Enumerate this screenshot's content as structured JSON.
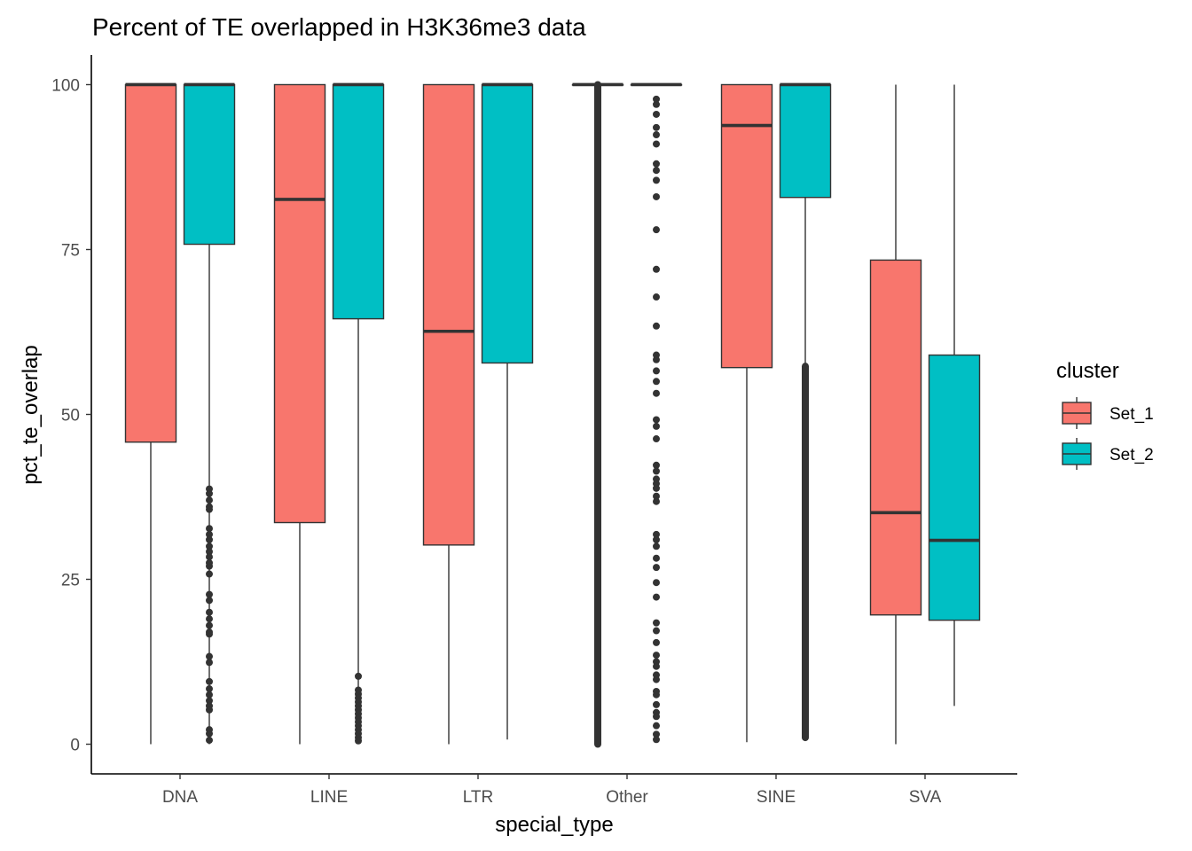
{
  "chart_data": {
    "type": "boxplot",
    "title": "Percent of TE overlapped in H3K36me3 data",
    "xlabel": "special_type",
    "ylabel": "pct_te_overlap",
    "ylim": [
      -4.5,
      104.5
    ],
    "yticks": [
      0,
      25,
      50,
      75,
      100
    ],
    "categories": [
      "DNA",
      "LINE",
      "LTR",
      "Other",
      "SINE",
      "SVA"
    ],
    "legend": {
      "title": "cluster",
      "position": "right",
      "entries": [
        {
          "name": "Set_1",
          "color": "#F8766D"
        },
        {
          "name": "Set_2",
          "color": "#00BFC4"
        }
      ]
    },
    "series": [
      {
        "name": "Set_1",
        "color": "#F8766D",
        "boxes": [
          {
            "category": "DNA",
            "min": 0,
            "q1": 45.8,
            "median": 100,
            "q3": 100,
            "max": 100,
            "outliers": []
          },
          {
            "category": "LINE",
            "min": 0,
            "q1": 33.6,
            "median": 82.6,
            "q3": 100,
            "max": 100,
            "outliers": []
          },
          {
            "category": "LTR",
            "min": 0,
            "q1": 30.2,
            "median": 62.6,
            "q3": 100,
            "max": 100,
            "outliers": []
          },
          {
            "category": "Other",
            "min": 100,
            "q1": 100,
            "median": 100,
            "q3": 100,
            "max": 100,
            "outliers_dense_range": [
              0,
              100
            ]
          },
          {
            "category": "SINE",
            "min": 0.3,
            "q1": 57.1,
            "median": 93.8,
            "q3": 100,
            "max": 100,
            "outliers": []
          },
          {
            "category": "SVA",
            "min": 0,
            "q1": 19.6,
            "median": 35.1,
            "q3": 73.4,
            "max": 100,
            "outliers": []
          }
        ]
      },
      {
        "name": "Set_2",
        "color": "#00BFC4",
        "boxes": [
          {
            "category": "DNA",
            "min": 0,
            "q1": 75.8,
            "median": 100,
            "q3": 100,
            "max": 100,
            "outliers": [
              38.7,
              38,
              37,
              36,
              35.6,
              32.7,
              31.8,
              31,
              30,
              29.2,
              28.4,
              27.5,
              27,
              25.8,
              22.7,
              21.8,
              20,
              19,
              18,
              17,
              16.7,
              13.3,
              12.4,
              9.5,
              8.4,
              7.5,
              6.6,
              5.8,
              5.2,
              2.2,
              1.6,
              0.6
            ]
          },
          {
            "category": "LINE",
            "min": 0,
            "q1": 64.5,
            "median": 100,
            "q3": 100,
            "max": 100,
            "outliers": [
              10.3,
              8.2,
              7.6,
              7,
              6.4,
              5.8,
              5.2,
              4.6,
              4,
              3.4,
              2.8,
              2.2,
              1.6,
              1,
              0.5
            ]
          },
          {
            "category": "LTR",
            "min": 0.7,
            "q1": 57.8,
            "median": 100,
            "q3": 100,
            "max": 100,
            "outliers": []
          },
          {
            "category": "Other",
            "min": 100,
            "q1": 100,
            "median": 100,
            "q3": 100,
            "max": 100,
            "outliers": [
              97.8,
              97,
              95.5,
              93.5,
              92.4,
              91,
              88,
              87,
              85.5,
              83,
              78,
              72,
              67.8,
              63.4,
              59,
              58.3,
              56.6,
              55,
              53.2,
              49.2,
              48.2,
              46.3,
              42.3,
              41.4,
              40.2,
              39.5,
              38.8,
              37.6,
              36.8,
              31.8,
              31,
              30,
              28.2,
              26.8,
              24.5,
              22.3,
              18.4,
              17.2,
              15.4,
              13.5,
              12.5,
              11.8,
              10.5,
              9.8,
              8,
              7.5,
              6,
              4.8,
              4.2,
              2.8,
              1.5,
              0.7
            ]
          },
          {
            "category": "SINE",
            "min": 1,
            "q1": 82.9,
            "median": 100,
            "q3": 100,
            "max": 100,
            "outliers_dense_range": [
              1,
              57.3
            ]
          },
          {
            "category": "SVA",
            "min": 5.8,
            "q1": 18.8,
            "median": 30.9,
            "q3": 59,
            "max": 100,
            "outliers": []
          }
        ]
      }
    ]
  }
}
